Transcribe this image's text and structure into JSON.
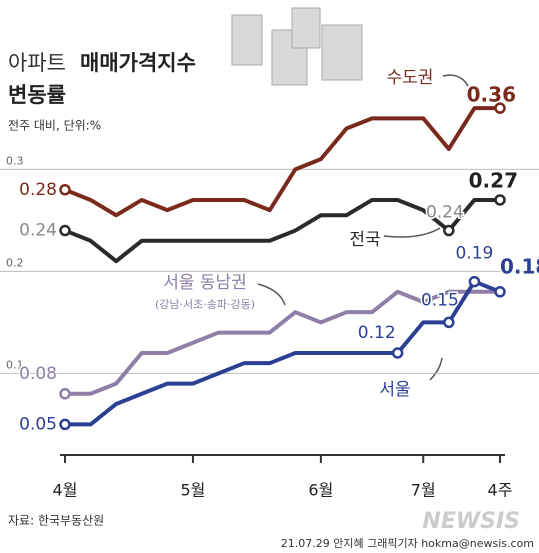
{
  "chart_data": {
    "type": "line",
    "title_parts": [
      "아파트",
      "매매가격지수",
      "변동률"
    ],
    "subtitle": "전주 대비, 단위:%",
    "categories": [
      "4월",
      null,
      null,
      null,
      null,
      "5월",
      null,
      null,
      null,
      null,
      "6월",
      null,
      null,
      null,
      "7월",
      null,
      null,
      "4주"
    ],
    "ylim": [
      0.02,
      0.466
    ],
    "yticks": [
      0.1,
      0.2,
      0.3
    ],
    "grid": true,
    "series": [
      {
        "name": "수도권",
        "color": "#7a2a1c",
        "values": [
          0.28,
          0.27,
          0.255,
          0.27,
          0.26,
          0.27,
          0.27,
          0.27,
          0.26,
          0.3,
          0.31,
          0.34,
          0.35,
          0.35,
          0.35,
          0.32,
          0.36,
          0.36
        ],
        "labeled": [
          0,
          17
        ],
        "dots": [
          0,
          17
        ]
      },
      {
        "name": "전국",
        "color": "#2a2a2a",
        "values": [
          0.24,
          0.23,
          0.21,
          0.23,
          0.23,
          0.23,
          0.23,
          0.23,
          0.23,
          0.24,
          0.255,
          0.255,
          0.27,
          0.27,
          0.26,
          0.24,
          0.27,
          0.27
        ],
        "labeled": [
          0,
          15,
          17
        ],
        "dots": [
          0,
          15,
          17
        ]
      },
      {
        "name": "서울 동남권",
        "note": "(강남·서초·송파·강동)",
        "color": "#8e7fa6",
        "values": [
          0.08,
          0.08,
          0.09,
          0.12,
          0.12,
          0.13,
          0.14,
          0.14,
          0.14,
          0.16,
          0.15,
          0.16,
          0.16,
          0.18,
          0.17,
          0.18,
          0.18,
          0.18
        ],
        "labeled": [
          0
        ],
        "dots": [
          0
        ]
      },
      {
        "name": "서울",
        "color": "#2b3f93",
        "values": [
          0.05,
          0.05,
          0.07,
          0.08,
          0.09,
          0.09,
          0.1,
          0.11,
          0.11,
          0.12,
          0.12,
          0.12,
          0.12,
          0.12,
          0.15,
          0.15,
          0.19,
          0.18
        ],
        "labeled": [
          0,
          13,
          15,
          16,
          17
        ],
        "dots": [
          0,
          13,
          15,
          16,
          17
        ]
      }
    ],
    "source": "자료: 한국부동산원",
    "credit": "21.07.29 안지혜 그래픽기자 hokma@newsis.com",
    "logo": "NEWSIS"
  }
}
